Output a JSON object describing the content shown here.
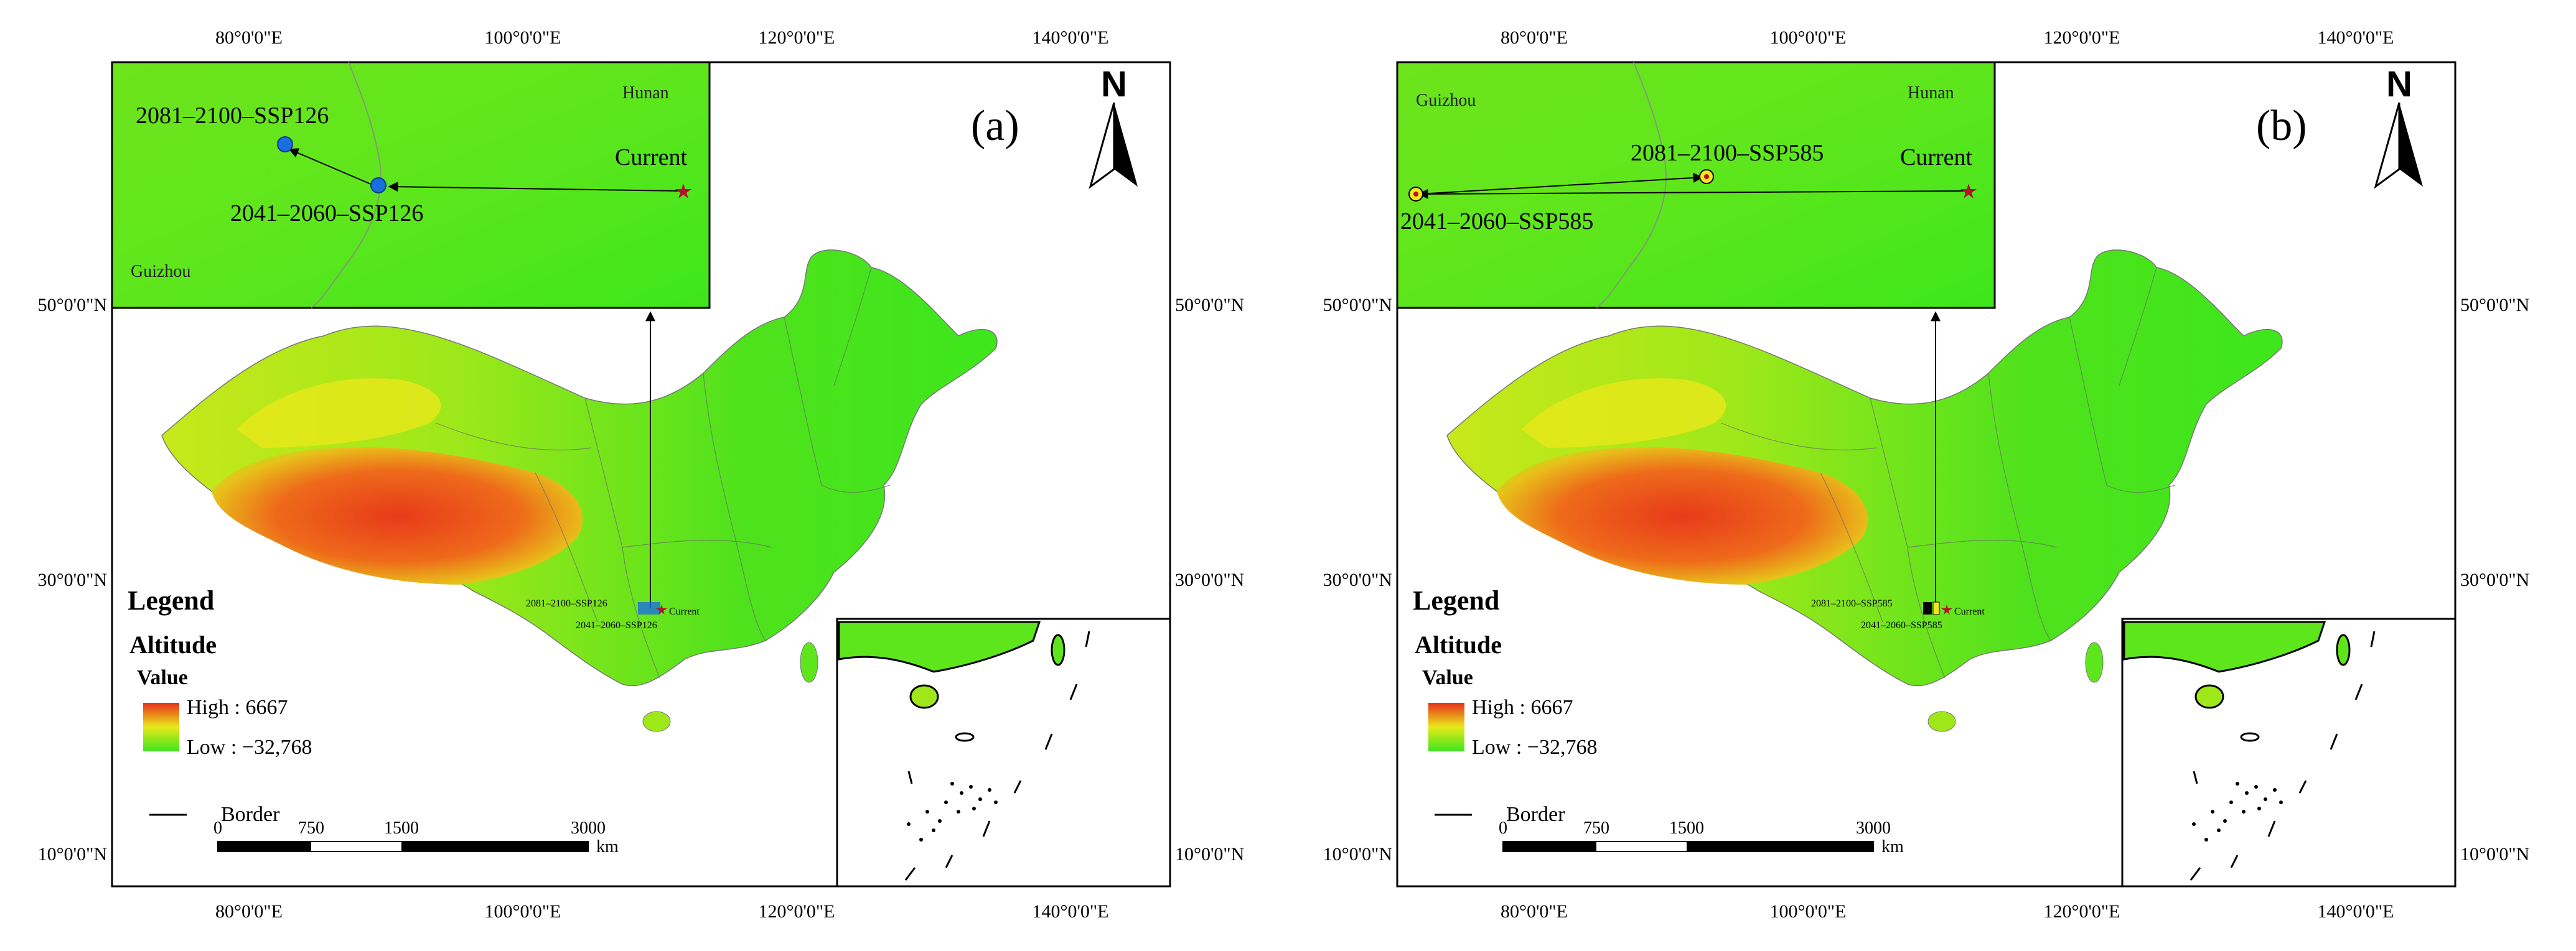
{
  "map": {
    "lon_ticks": [
      "80°0'0\"E",
      "100°0'0\"E",
      "120°0'0\"E",
      "140°0'0\"E"
    ],
    "lat_ticks": [
      "50°0'0\"N",
      "30°0'0\"N",
      "10°0'0\"N"
    ],
    "colors": {
      "low": "#3ee61c",
      "mid": "#e8e81a",
      "high": "#e8301a",
      "current_marker": "#b0142a",
      "point_blue": "#1a6fe0",
      "point_yellow": "#f5e61a"
    }
  },
  "legend": {
    "title": "Legend",
    "layer": "Altitude",
    "value_label": "Value",
    "high": "High : 6667",
    "low": "Low : −32,768",
    "border": "Border"
  },
  "scale_bar": {
    "ticks": [
      "0",
      "750",
      "1500",
      "3000"
    ],
    "unit": "km"
  },
  "north_arrow": {
    "label": "N"
  },
  "panels": [
    {
      "label": "(a)",
      "inset": {
        "provinces": [
          "Hunan",
          "Guizhou"
        ],
        "current": "Current",
        "p2041": "2041–2060–SSP126",
        "p2081": "2081–2100–SSP126"
      },
      "main_labels": {
        "p2081": "2081–2100–SSP126",
        "current": "Current",
        "p2041": "2041–2060–SSP126"
      }
    },
    {
      "label": "(b)",
      "inset": {
        "provinces": [
          "Guizhou",
          "Hunan"
        ],
        "current": "Current",
        "p2041": "2041–2060–SSP585",
        "p2081": "2081–2100–SSP585"
      },
      "main_labels": {
        "p2081": "2081–2100–SSP585",
        "current": "Current",
        "p2041": "2041–2060–SSP585"
      }
    }
  ]
}
